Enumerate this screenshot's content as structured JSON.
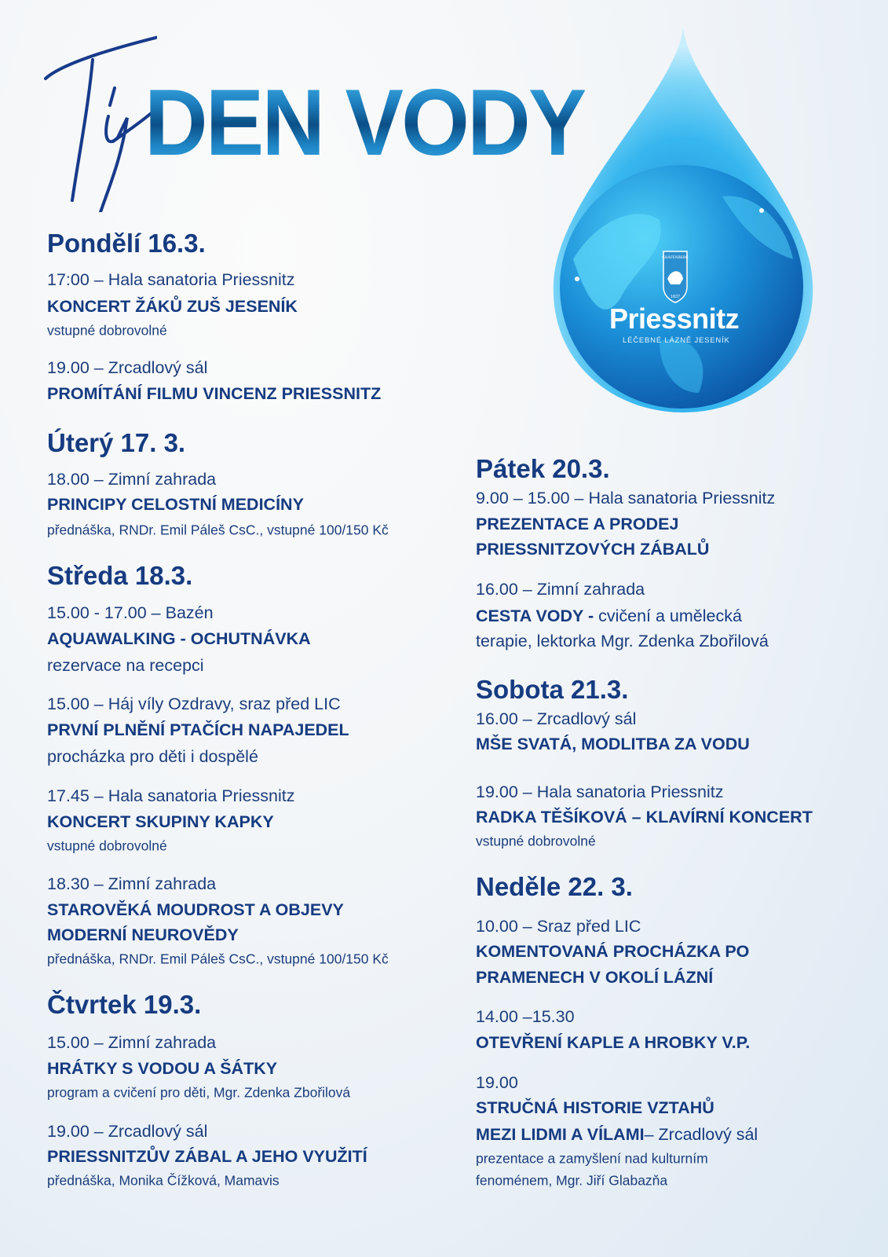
{
  "header": {
    "script_prefix": "Tý",
    "title": "DEN VODY"
  },
  "logo": {
    "crest_text": "GRÄFENBERG",
    "crest_year": "1837",
    "name": "Priessnitz",
    "tagline": "LÉČEBNÉ LÁZNĚ JESENÍK"
  },
  "colors": {
    "text": "#163b80",
    "title_gradient_light": "#41b4ea",
    "title_gradient_dark": "#0b4f86",
    "drop": "#2aa7e8"
  },
  "days": [
    {
      "heading": "Pondělí 16.3.",
      "events": [
        {
          "lines": [
            {
              "style": "time",
              "text": "17:00 – Hala sanatoria Priessnitz"
            },
            {
              "style": "titleb",
              "text": "KONCERT ŽÁKŮ ZUŠ JESENÍK"
            },
            {
              "style": "note-sm",
              "text": "vstupné dobrovolné"
            }
          ]
        },
        {
          "lines": [
            {
              "style": "time",
              "text": "19.00 – Zrcadlový sál"
            },
            {
              "style": "titleb",
              "text": "PROMÍTÁNÍ FILMU VINCENZ PRIESSNITZ"
            }
          ]
        }
      ]
    },
    {
      "heading": "Úterý 17. 3.",
      "events": [
        {
          "lines": [
            {
              "style": "time",
              "text": "18.00 – Zimní zahrada"
            },
            {
              "style": "titleb",
              "text": "PRINCIPY CELOSTNÍ MEDICÍNY"
            },
            {
              "style": "note-sm",
              "text": "přednáška, RNDr. Emil Páleš CsC., vstupné 100/150 Kč"
            }
          ]
        }
      ]
    },
    {
      "heading": "Středa 18.3.",
      "events": [
        {
          "lines": [
            {
              "style": "time",
              "text": "15.00 - 17.00 – Bazén"
            },
            {
              "style": "titleb",
              "text": "AQUAWALKING - OCHUTNÁVKA"
            },
            {
              "style": "note-lg",
              "text": "rezervace na recepci"
            }
          ]
        },
        {
          "lines": [
            {
              "style": "time",
              "text": "15.00 – Háj víly Ozdravy, sraz před LIC"
            },
            {
              "style": "titleb",
              "text": "PRVNÍ PLNĚNÍ PTAČÍCH NAPAJEDEL"
            },
            {
              "style": "note-lg",
              "text": "procházka pro děti i dospělé"
            }
          ]
        },
        {
          "lines": [
            {
              "style": "time",
              "text": "17.45 – Hala sanatoria Priessnitz"
            },
            {
              "style": "titleb",
              "text": "KONCERT SKUPINY KAPKY"
            },
            {
              "style": "note-sm",
              "text": "vstupné dobrovolné"
            }
          ]
        },
        {
          "lines": [
            {
              "style": "time",
              "text": "18.30 – Zimní zahrada"
            },
            {
              "style": "titleb",
              "text": "STAROVĚKÁ MOUDROST A OBJEVY"
            },
            {
              "style": "titleb",
              "text": "MODERNÍ NEUROVĚDY"
            },
            {
              "style": "note-sm",
              "text": "přednáška, RNDr. Emil Páleš CsC., vstupné 100/150 Kč"
            }
          ]
        }
      ]
    },
    {
      "heading": "Čtvrtek 19.3.",
      "events": [
        {
          "lines": [
            {
              "style": "time",
              "text": "15.00 – Zimní zahrada"
            },
            {
              "style": "titleb",
              "text": "HRÁTKY S VODOU A ŠÁTKY"
            },
            {
              "style": "note-sm",
              "text": "program a cvičení pro děti, Mgr. Zdenka Zbořilová"
            }
          ]
        },
        {
          "lines": [
            {
              "style": "time",
              "text": "19.00 – Zrcadlový sál"
            },
            {
              "style": "titleb",
              "text": "PRIESSNITZŮV ZÁBAL A JEHO VYUŽITÍ"
            },
            {
              "style": "note-sm",
              "text": "přednáška, Monika Čížková, Mamavis"
            }
          ]
        }
      ]
    },
    {
      "heading": "Pátek 20.3.",
      "events": [
        {
          "lines": [
            {
              "style": "time",
              "text": "9.00 – 15.00 – Hala sanatoria Priessnitz"
            },
            {
              "style": "titleb",
              "text": "PREZENTACE A PRODEJ"
            },
            {
              "style": "titleb",
              "text": "PRIESSNITZOVÝCH ZÁBALŮ"
            }
          ]
        },
        {
          "lines": [
            {
              "style": "time",
              "text": "16.00 – Zimní zahrada"
            },
            {
              "style": "mixed",
              "bold": "CESTA VODY -",
              "text": " cvičení a umělecká"
            },
            {
              "style": "note-lg",
              "text": "terapie, lektorka Mgr. Zdenka Zbořilová"
            }
          ]
        }
      ]
    },
    {
      "heading": "Sobota 21.3.",
      "events": [
        {
          "lines": [
            {
              "style": "time",
              "text": "16.00 – Zrcadlový sál"
            },
            {
              "style": "titleb",
              "text": "MŠE SVATÁ, MODLITBA ZA VODU"
            }
          ]
        },
        {
          "lines": [
            {
              "style": "time",
              "text": "19.00 – Hala sanatoria Priessnitz"
            },
            {
              "style": "titleb",
              "text": "RADKA TĚŠÍKOVÁ – KLAVÍRNÍ KONCERT"
            },
            {
              "style": "note-sm",
              "text": "vstupné dobrovolné"
            }
          ]
        }
      ]
    },
    {
      "heading": "Neděle 22. 3.",
      "events": [
        {
          "lines": [
            {
              "style": "time",
              "text": "10.00 – Sraz před LIC"
            },
            {
              "style": "titleb",
              "text": "KOMENTOVANÁ PROCHÁZKA PO"
            },
            {
              "style": "titleb",
              "text": "PRAMENECH V OKOLÍ LÁZNÍ"
            }
          ]
        },
        {
          "lines": [
            {
              "style": "time",
              "text": "14.00 –15.30"
            },
            {
              "style": "titleb",
              "text": "OTEVŘENÍ KAPLE A HROBKY V.P."
            }
          ]
        },
        {
          "lines": [
            {
              "style": "time",
              "text": "19.00"
            },
            {
              "style": "titleb",
              "text": "STRUČNÁ HISTORIE VZTAHŮ"
            },
            {
              "style": "mixed",
              "bold": "MEZI LIDMI A VÍLAMI",
              "text": "– Zrcadlový sál"
            },
            {
              "style": "note-sm",
              "text": "prezentace a zamyšlení nad kulturním"
            },
            {
              "style": "note-sm",
              "text": "fenoménem, Mgr. Jiří Glabazňa"
            }
          ]
        }
      ]
    }
  ]
}
